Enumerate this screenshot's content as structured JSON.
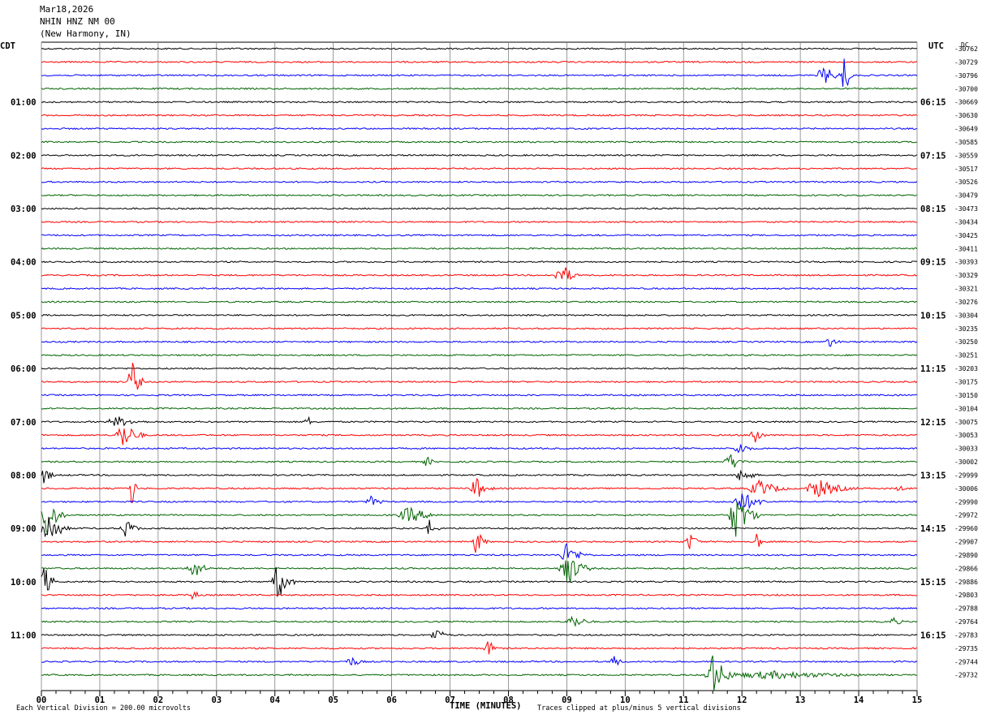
{
  "header": {
    "date": "Mar18,2026",
    "station": "NHIN HNZ NM 00",
    "location": "(New Harmony, IN)"
  },
  "left_tz": "CDT",
  "right_tz": "UTC",
  "dc_label": "DC",
  "footer": {
    "scale_note": "Each Vertical Division =  200.00 microvolts",
    "clip_note": "Traces clipped at plus/minus 5 vertical divisions"
  },
  "colors": {
    "cycle": [
      "#000000",
      "#ff0000",
      "#0000ff",
      "#006400"
    ],
    "grid": "#808080"
  },
  "chart_data": {
    "type": "line",
    "title": "NHIN HNZ NM 00",
    "xlabel": "TIME (MINUTES)",
    "ylabel": "",
    "xlim": [
      0,
      15
    ],
    "x_ticks": [
      "00",
      "01",
      "02",
      "03",
      "04",
      "05",
      "06",
      "07",
      "08",
      "09",
      "10",
      "11",
      "12",
      "13",
      "14",
      "15"
    ],
    "trace_count": 48,
    "trace_minutes": 15,
    "left_hour_labels": [
      "01:00",
      "02:00",
      "03:00",
      "04:00",
      "05:00",
      "06:00",
      "07:00",
      "08:00",
      "09:00",
      "10:00",
      "11:00"
    ],
    "right_hour_labels": [
      "06:15",
      "07:15",
      "08:15",
      "09:15",
      "10:15",
      "11:15",
      "12:15",
      "13:15",
      "14:15",
      "15:15",
      "16:15"
    ],
    "right_trace_values": [
      "-30762",
      "-30729",
      "-30796",
      "-30700",
      "-30669",
      "-30630",
      "-30649",
      "-30585",
      "-30559",
      "-30517",
      "-30526",
      "-30479",
      "-30473",
      "-30434",
      "-30425",
      "-30411",
      "-30393",
      "-30329",
      "-30321",
      "-30276",
      "-30304",
      "-30235",
      "-30250",
      "-30251",
      "-30203",
      "-30175",
      "-30150",
      "-30104",
      "-30075",
      "-30053",
      "-30033",
      "-30002",
      "-29999",
      "-30006",
      "-29990",
      "-29972",
      "-29960",
      "-29907",
      "-29890",
      "-29866",
      "-29886",
      "-29803",
      "-29788",
      "-29764",
      "-29783",
      "-29735",
      "-29744",
      "-29732"
    ],
    "events": [
      {
        "trace": 2,
        "minute": 13.4,
        "amp": 2.2,
        "dur": 0.35
      },
      {
        "trace": 2,
        "minute": 13.75,
        "amp": 5.0,
        "dur": 0.15
      },
      {
        "trace": 17,
        "minute": 8.9,
        "amp": 3.0,
        "dur": 0.3
      },
      {
        "trace": 22,
        "minute": 13.5,
        "amp": 1.2,
        "dur": 0.25
      },
      {
        "trace": 25,
        "minute": 1.55,
        "amp": 5.0,
        "dur": 0.2
      },
      {
        "trace": 28,
        "minute": 1.3,
        "amp": 1.2,
        "dur": 0.6
      },
      {
        "trace": 28,
        "minute": 4.55,
        "amp": 2.0,
        "dur": 0.1
      },
      {
        "trace": 29,
        "minute": 1.4,
        "amp": 3.0,
        "dur": 0.4
      },
      {
        "trace": 29,
        "minute": 12.2,
        "amp": 3.0,
        "dur": 0.2
      },
      {
        "trace": 30,
        "minute": 11.95,
        "amp": 1.5,
        "dur": 0.3
      },
      {
        "trace": 31,
        "minute": 6.6,
        "amp": 1.2,
        "dur": 0.2
      },
      {
        "trace": 31,
        "minute": 11.8,
        "amp": 2.0,
        "dur": 0.3
      },
      {
        "trace": 32,
        "minute": 0.05,
        "amp": 2.0,
        "dur": 0.2
      },
      {
        "trace": 32,
        "minute": 12.0,
        "amp": 2.0,
        "dur": 0.3
      },
      {
        "trace": 33,
        "minute": 1.55,
        "amp": 5.0,
        "dur": 0.1
      },
      {
        "trace": 33,
        "minute": 7.45,
        "amp": 2.5,
        "dur": 0.3
      },
      {
        "trace": 33,
        "minute": 12.3,
        "amp": 1.8,
        "dur": 0.6
      },
      {
        "trace": 33,
        "minute": 13.3,
        "amp": 2.0,
        "dur": 0.7
      },
      {
        "trace": 33,
        "minute": 14.7,
        "amp": 0.8,
        "dur": 0.2
      },
      {
        "trace": 34,
        "minute": 5.65,
        "amp": 1.2,
        "dur": 0.3
      },
      {
        "trace": 34,
        "minute": 12.0,
        "amp": 2.2,
        "dur": 0.5
      },
      {
        "trace": 35,
        "minute": 0.1,
        "amp": 5.0,
        "dur": 0.3
      },
      {
        "trace": 35,
        "minute": 6.3,
        "amp": 1.8,
        "dur": 0.6
      },
      {
        "trace": 35,
        "minute": 11.9,
        "amp": 5.0,
        "dur": 0.4
      },
      {
        "trace": 36,
        "minute": 0.1,
        "amp": 4.0,
        "dur": 0.4
      },
      {
        "trace": 36,
        "minute": 1.45,
        "amp": 2.0,
        "dur": 0.3
      },
      {
        "trace": 36,
        "minute": 6.65,
        "amp": 2.0,
        "dur": 0.2
      },
      {
        "trace": 37,
        "minute": 7.45,
        "amp": 3.0,
        "dur": 0.2
      },
      {
        "trace": 37,
        "minute": 11.1,
        "amp": 2.0,
        "dur": 0.25
      },
      {
        "trace": 37,
        "minute": 12.25,
        "amp": 3.0,
        "dur": 0.1
      },
      {
        "trace": 38,
        "minute": 9.0,
        "amp": 2.5,
        "dur": 0.4
      },
      {
        "trace": 39,
        "minute": 2.6,
        "amp": 2.5,
        "dur": 0.3
      },
      {
        "trace": 39,
        "minute": 9.0,
        "amp": 4.0,
        "dur": 0.4
      },
      {
        "trace": 40,
        "minute": 0.05,
        "amp": 4.0,
        "dur": 0.2
      },
      {
        "trace": 40,
        "minute": 4.05,
        "amp": 4.0,
        "dur": 0.3
      },
      {
        "trace": 41,
        "minute": 2.6,
        "amp": 2.5,
        "dur": 0.1
      },
      {
        "trace": 43,
        "minute": 9.1,
        "amp": 1.5,
        "dur": 0.4
      },
      {
        "trace": 43,
        "minute": 14.6,
        "amp": 1.2,
        "dur": 0.2
      },
      {
        "trace": 44,
        "minute": 6.75,
        "amp": 1.5,
        "dur": 0.3
      },
      {
        "trace": 45,
        "minute": 7.65,
        "amp": 2.0,
        "dur": 0.2
      },
      {
        "trace": 46,
        "minute": 5.3,
        "amp": 1.2,
        "dur": 0.3
      },
      {
        "trace": 46,
        "minute": 9.8,
        "amp": 1.5,
        "dur": 0.2
      },
      {
        "trace": 47,
        "minute": 11.5,
        "amp": 4.5,
        "dur": 0.4
      },
      {
        "trace": 47,
        "minute": 12.5,
        "amp": 0.9,
        "dur": 2.5
      }
    ]
  }
}
